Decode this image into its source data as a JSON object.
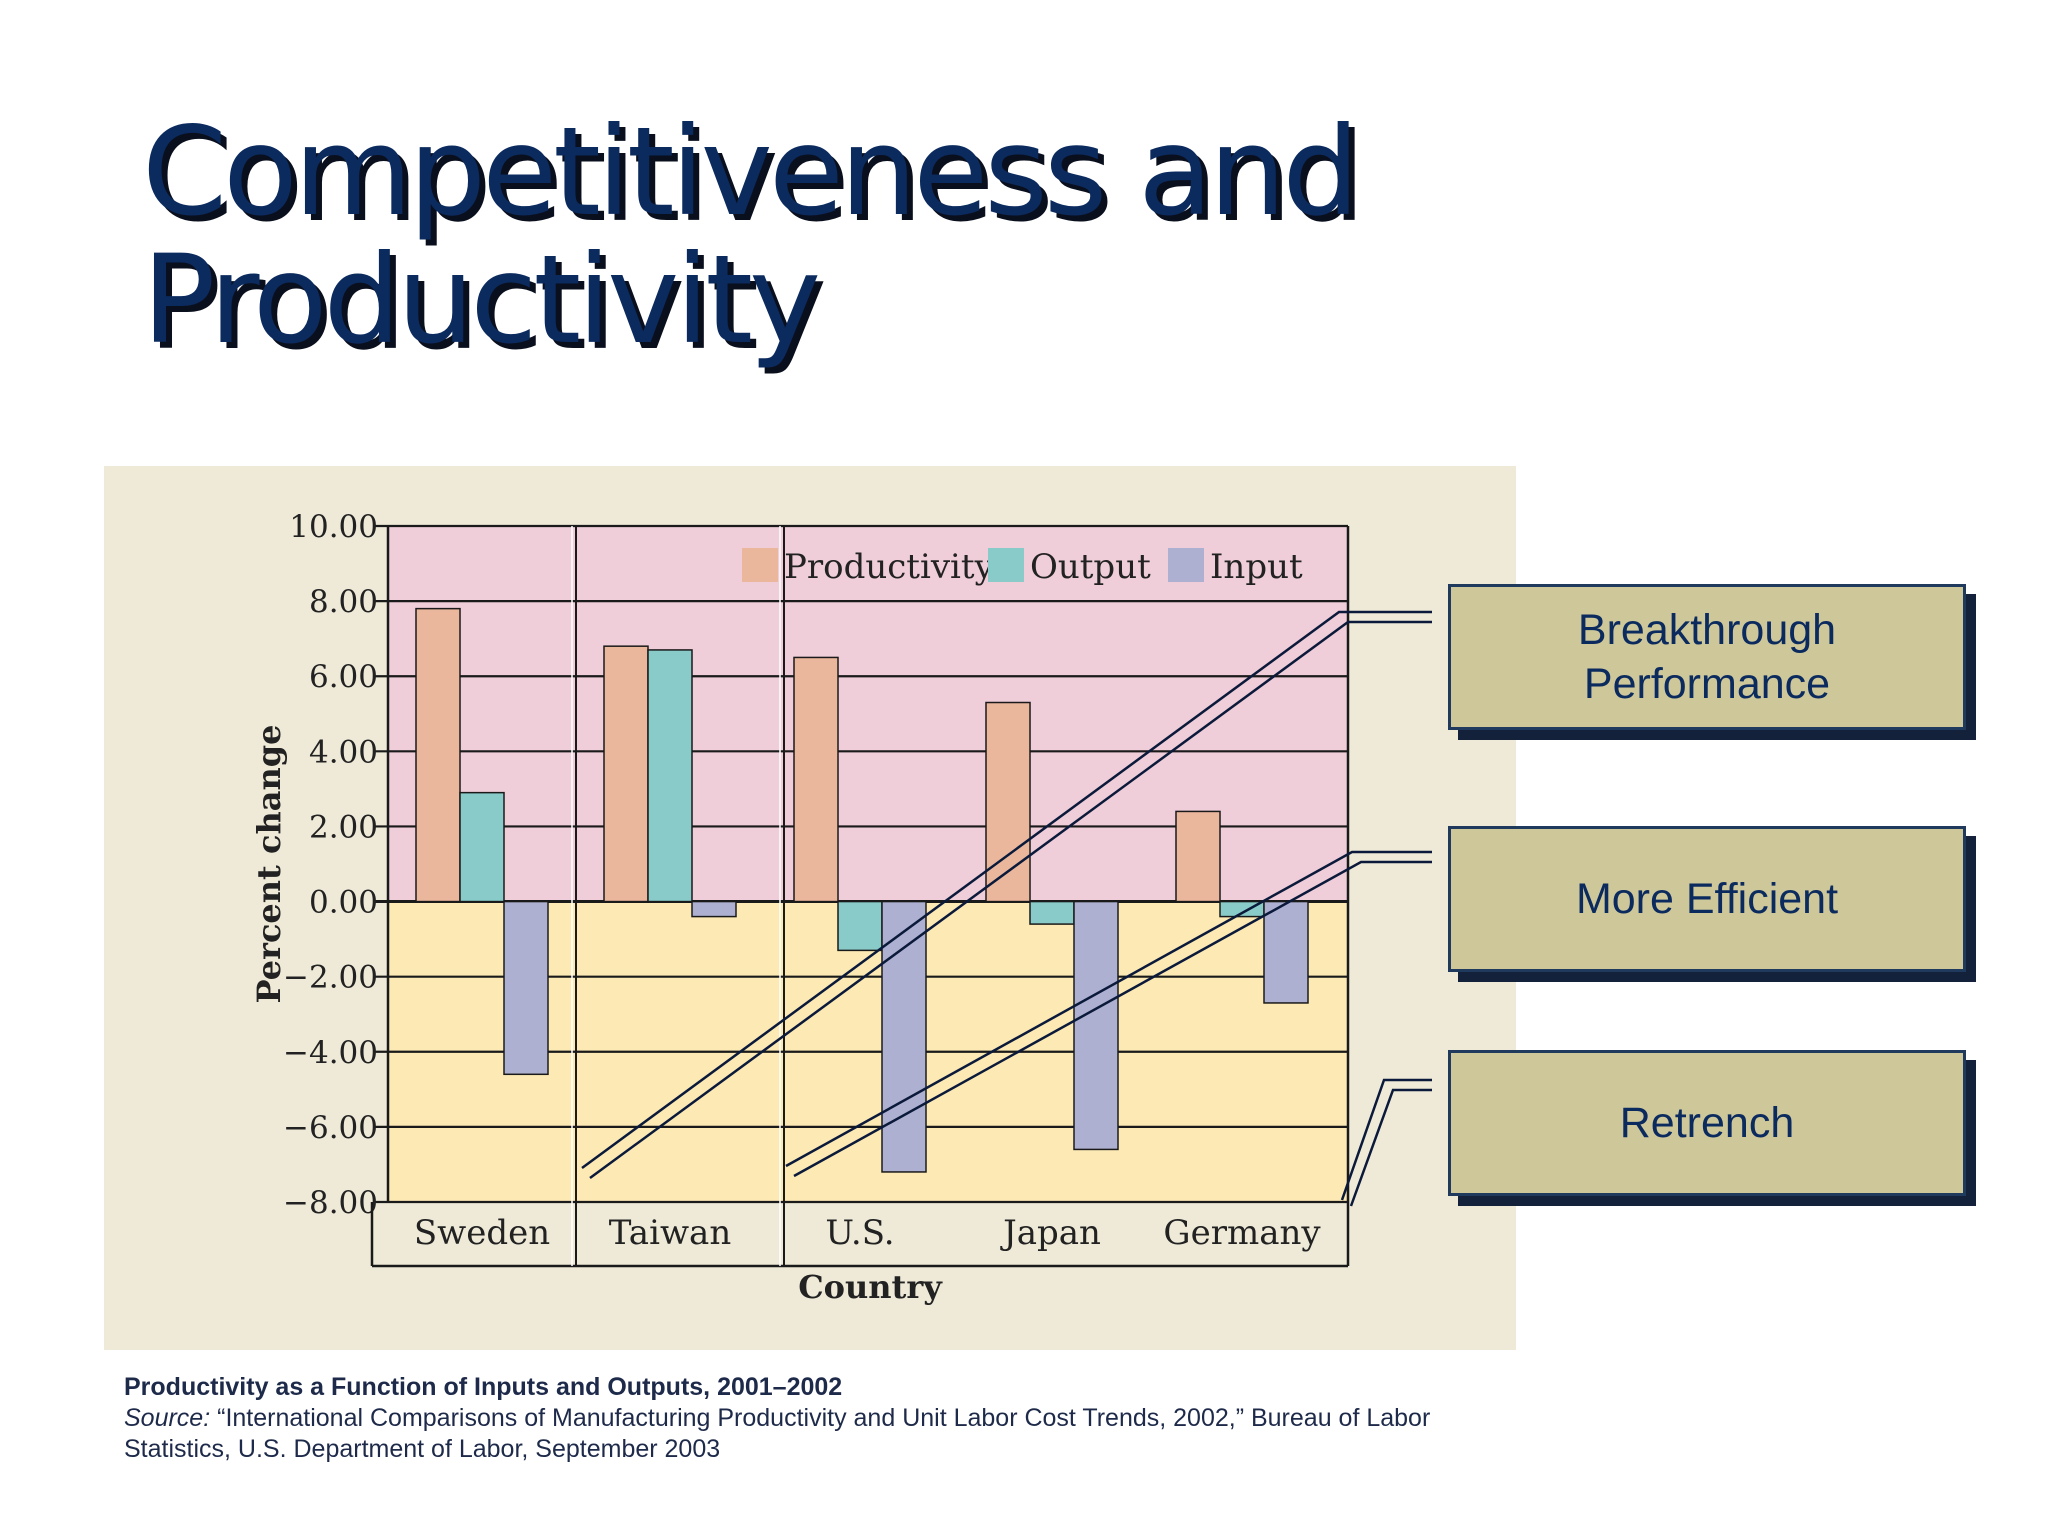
{
  "title": {
    "line1": "Competitiveness and",
    "line2": "Productivity"
  },
  "chart_data": {
    "type": "bar",
    "ylabel": "Percent change",
    "xlabel": "Country",
    "ylim": [
      -8,
      10
    ],
    "yticks": [
      "10.00",
      "8.00",
      "6.00",
      "4.00",
      "2.00",
      "0.00",
      "−2.00",
      "−4.00",
      "−6.00",
      "−8.00"
    ],
    "categories": [
      "Sweden",
      "Taiwan",
      "U.S.",
      "Japan",
      "Germany"
    ],
    "series": [
      {
        "name": "Productivity",
        "values": [
          7.8,
          6.8,
          6.5,
          5.3,
          2.4
        ]
      },
      {
        "name": "Output",
        "values": [
          2.9,
          6.7,
          -1.3,
          -0.6,
          -0.4
        ]
      },
      {
        "name": "Input",
        "values": [
          -4.6,
          -0.4,
          -7.2,
          -6.6,
          -2.7
        ]
      }
    ],
    "colors": {
      "Productivity": "#eab79c",
      "Output": "#88cbc8",
      "Input": "#aeb0d1",
      "positive_bg": "#efcdd9",
      "negative_bg": "#fce9b4"
    },
    "legend": "top-right"
  },
  "callouts": {
    "breakthrough": "Breakthrough Performance",
    "efficient": "More Efficient",
    "retrench": "Retrench"
  },
  "caption": {
    "title": "Productivity as a Function of Inputs and Outputs, 2001–2002",
    "source_label": "Source:",
    "source_text": " “International Comparisons of Manufacturing Productivity and Unit Labor Cost Trends, 2002,” Bureau of Labor Statistics, U.S. Department of Labor, September 2003"
  }
}
